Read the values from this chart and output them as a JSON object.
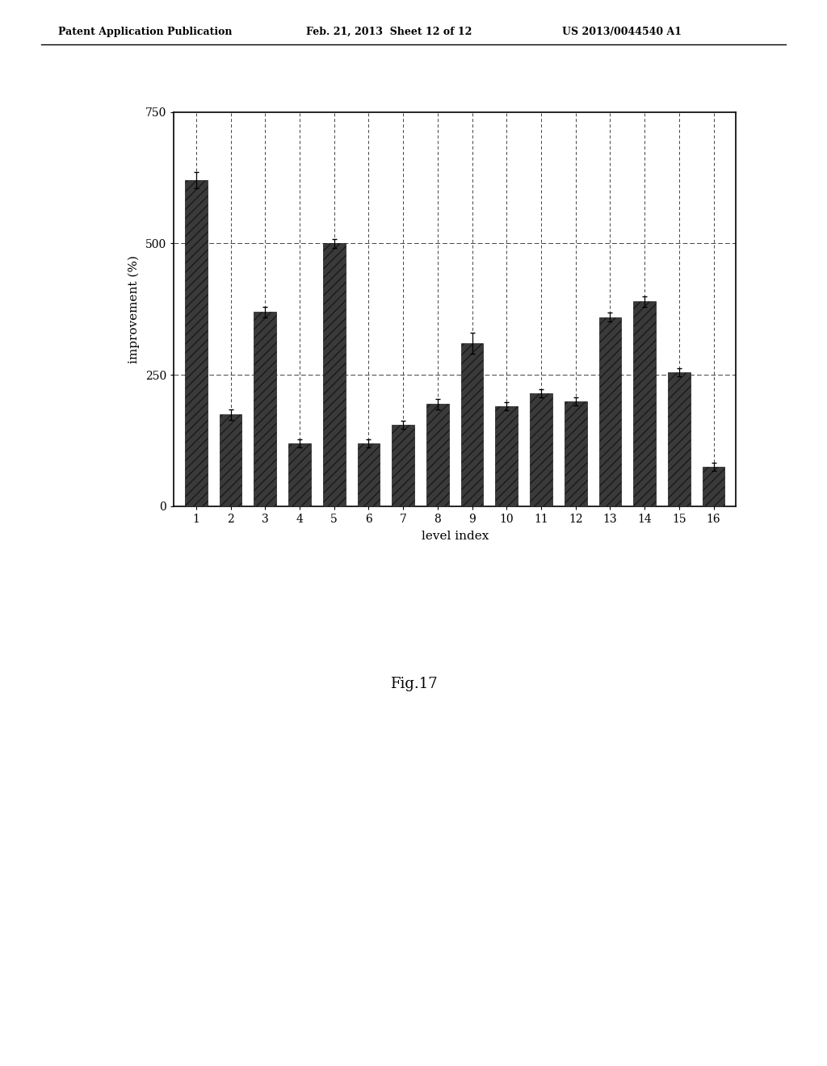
{
  "values": [
    620,
    175,
    370,
    120,
    500,
    120,
    155,
    195,
    310,
    190,
    215,
    200,
    360,
    390,
    255,
    75
  ],
  "error_bars": [
    15,
    10,
    10,
    8,
    8,
    8,
    8,
    10,
    20,
    8,
    8,
    8,
    8,
    10,
    8,
    8
  ],
  "xlabel": "level index",
  "ylabel": "improvement (%)",
  "ylim": [
    0,
    750
  ],
  "yticks": [
    0,
    250,
    500,
    750
  ],
  "bar_color": "#3a3a3a",
  "figure_caption": "Fig.17",
  "header_left": "Patent Application Publication",
  "header_mid": "Feb. 21, 2013  Sheet 12 of 12",
  "header_right": "US 2013/0044540 A1",
  "background_color": "#ffffff",
  "grid_color": "#555555",
  "figsize": [
    10.24,
    13.2
  ],
  "dpi": 100
}
